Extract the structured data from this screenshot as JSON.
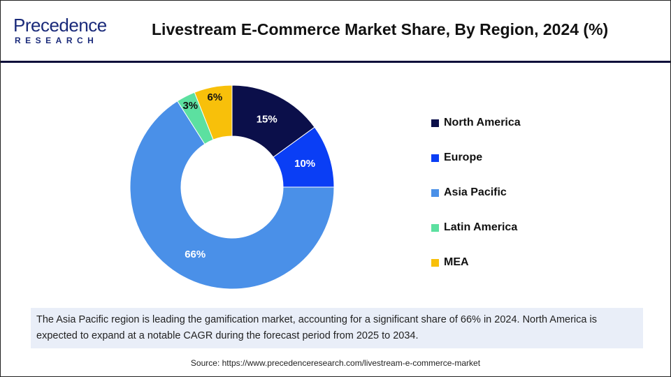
{
  "logo": {
    "line1": "Precedence",
    "line2": "RESEARCH"
  },
  "chart_data": {
    "type": "pie",
    "title": "Livestream E-Commerce Market Share, By Region, 2024 (%)",
    "categories": [
      "North America",
      "Europe",
      "Asia Pacific",
      "Latin America",
      "MEA"
    ],
    "values": [
      15,
      10,
      66,
      3,
      6
    ],
    "labels": [
      "15%",
      "10%",
      "66%",
      "3%",
      "6%"
    ],
    "colors": [
      "#0b0f4a",
      "#0a3ef5",
      "#4a90e8",
      "#5ce0a0",
      "#f8c00a"
    ],
    "label_colors": [
      "#ffffff",
      "#ffffff",
      "#ffffff",
      "#111111",
      "#111111"
    ],
    "donut": true,
    "legend_position": "right"
  },
  "note": "The Asia Pacific region is leading the gamification market, accounting for a significant share of 66% in 2024. North America is expected to expand at a notable CAGR during the forecast period from 2025 to 2034.",
  "source": "Source: https://www.precedenceresearch.com/livestream-e-commerce-market"
}
